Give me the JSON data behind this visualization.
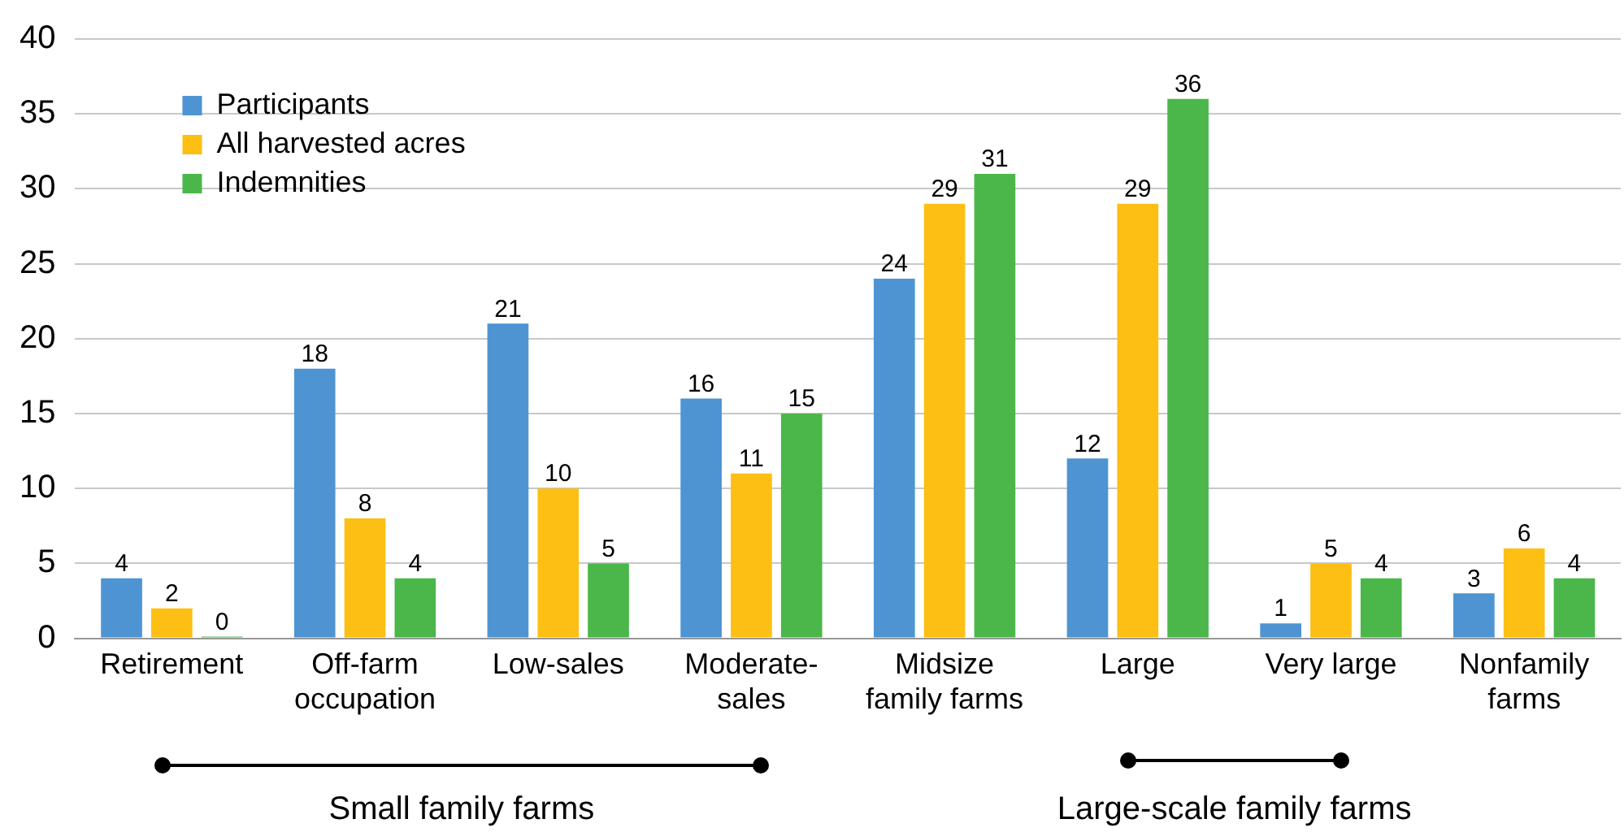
{
  "chart_data": {
    "type": "bar",
    "categories": [
      "Retirement",
      "Off-farm occupation",
      "Low-sales",
      "Moderate-sales",
      "Midsize family farms",
      "Large",
      "Very large",
      "Nonfamily farms"
    ],
    "series": [
      {
        "name": "Participants",
        "color": "#4e94d3",
        "values": [
          4,
          18,
          21,
          16,
          24,
          12,
          1,
          3
        ]
      },
      {
        "name": "All harvested acres",
        "color": "#fdbf14",
        "values": [
          2,
          8,
          10,
          11,
          29,
          29,
          5,
          6
        ]
      },
      {
        "name": "Indemnities",
        "color": "#4bb74a",
        "values": [
          0,
          4,
          5,
          15,
          31,
          36,
          4,
          4
        ]
      }
    ],
    "ylim": [
      0,
      40
    ],
    "yticks": [
      0,
      5,
      10,
      15,
      20,
      25,
      30,
      35,
      40
    ],
    "grid": "y",
    "legend": "top left",
    "data_labels": true,
    "annotations": [
      "Small family farms",
      "Large-scale family farms"
    ]
  }
}
